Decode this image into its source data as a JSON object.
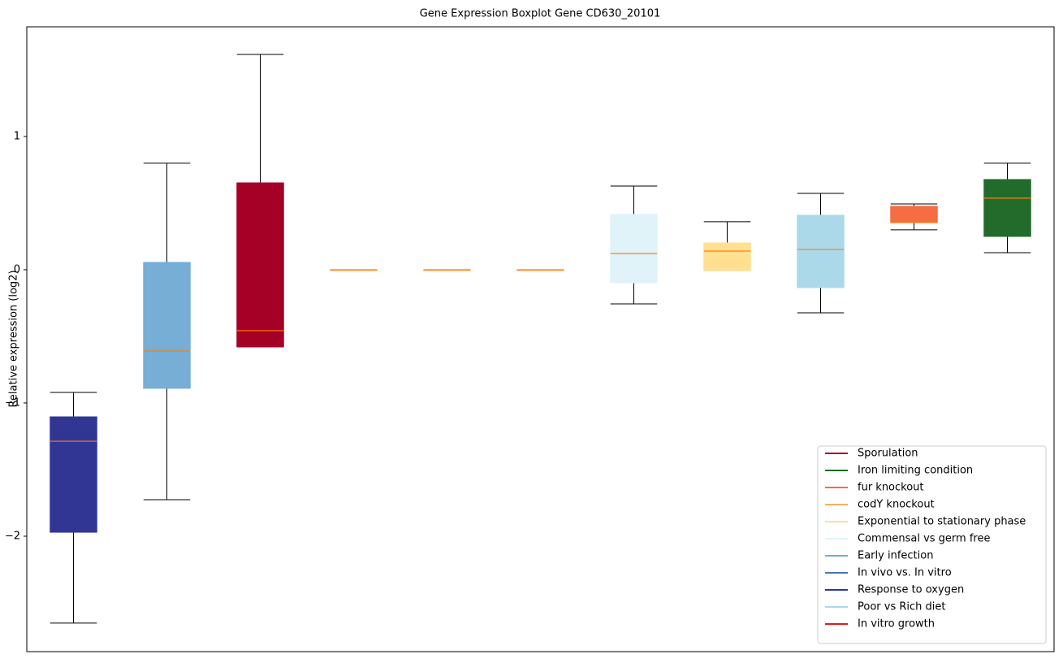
{
  "chart_data": {
    "type": "boxplot",
    "title": "Gene Expression Boxplot Gene CD630_20101",
    "ylabel": "Relative expression (log2)",
    "ylim": [
      -2.866,
      1.823
    ],
    "yticks": [
      {
        "value": -2,
        "label": "−2"
      },
      {
        "value": -1,
        "label": "−1"
      },
      0,
      1
    ],
    "median_color": "#ff7f0e",
    "boxes": [
      {
        "color": "#313695",
        "whislo": -2.652,
        "q1": -1.97,
        "med": -1.287,
        "q3": -1.104,
        "whishi": -0.921
      },
      {
        "color": "#76aed5",
        "whislo": -1.726,
        "q1": -0.89,
        "med": -0.61,
        "q3": 0.055,
        "whishi": 0.799
      },
      {
        "color": "#a50026",
        "whislo": -0.579,
        "q1": -0.579,
        "med": -0.457,
        "q3": 0.652,
        "whishi": 1.616
      },
      {
        "color": "#fdae61",
        "whislo": 0,
        "q1": 0,
        "med": 0,
        "q3": 0,
        "whishi": 0
      },
      {
        "color": "#fdae61",
        "whislo": 0,
        "q1": 0,
        "med": 0,
        "q3": 0,
        "whishi": 0
      },
      {
        "color": "#fdae61",
        "whislo": 0,
        "q1": 0,
        "med": 0,
        "q3": 0,
        "whishi": 0
      },
      {
        "color": "#e0f3f8",
        "whislo": -0.256,
        "q1": -0.098,
        "med": 0.122,
        "q3": 0.415,
        "whishi": 0.628
      },
      {
        "color": "#fee090",
        "whislo": -0.006,
        "q1": -0.006,
        "med": 0.14,
        "q3": 0.201,
        "whishi": 0.36
      },
      {
        "color": "#abd9e9",
        "whislo": -0.323,
        "q1": -0.134,
        "med": 0.152,
        "q3": 0.409,
        "whishi": 0.573
      },
      {
        "color": "#f46d43",
        "whislo": 0.299,
        "q1": 0.354,
        "med": 0.354,
        "q3": 0.476,
        "whishi": 0.494
      },
      {
        "color": "#226b2b",
        "whislo": 0.128,
        "q1": 0.25,
        "med": 0.537,
        "q3": 0.677,
        "whishi": 0.799
      }
    ],
    "legend_loc": "lower right",
    "legend": [
      {
        "name": "Sporulation",
        "color": "#a50026"
      },
      {
        "name": "Iron limiting condition",
        "color": "#1a6e25"
      },
      {
        "name": "fur knockout",
        "color": "#f46d43"
      },
      {
        "name": "codY knockout",
        "color": "#fdae61"
      },
      {
        "name": "Exponential to stationary phase",
        "color": "#fee090"
      },
      {
        "name": "Commensal vs germ free",
        "color": "#e0f3f8"
      },
      {
        "name": "Early infection",
        "color": "#74add1"
      },
      {
        "name": "In vivo vs. In vitro",
        "color": "#4575b4"
      },
      {
        "name": "Response to oxygen",
        "color": "#313695"
      },
      {
        "name": "Poor vs Rich diet",
        "color": "#abd9e9"
      },
      {
        "name": "In vitro growth",
        "color": "#e31a1c"
      }
    ]
  }
}
